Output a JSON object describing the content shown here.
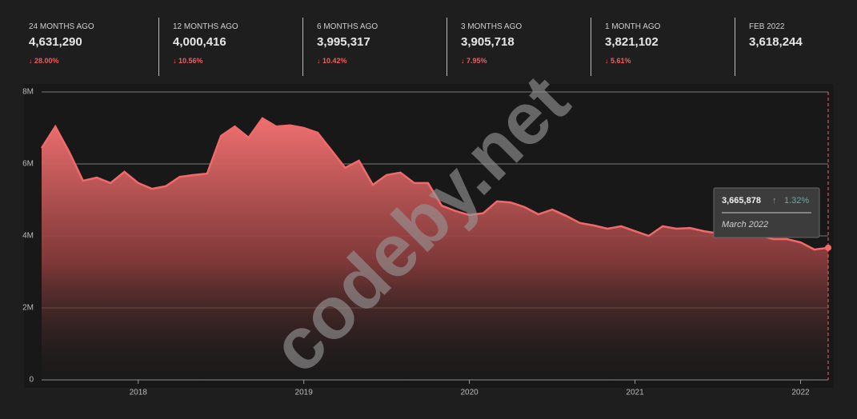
{
  "stats": [
    {
      "label": "24 MONTHS AGO",
      "value": "4,631,290",
      "change": "28.00%"
    },
    {
      "label": "12 MONTHS AGO",
      "value": "4,000,416",
      "change": "10.56%"
    },
    {
      "label": "6 MONTHS AGO",
      "value": "3,995,317",
      "change": "10.42%"
    },
    {
      "label": "3 MONTHS AGO",
      "value": "3,905,718",
      "change": "7.95%"
    },
    {
      "label": "1 MONTH AGO",
      "value": "3,821,102",
      "change": "5.61%"
    },
    {
      "label": "FEB 2022",
      "value": "3,618,244"
    }
  ],
  "watermark": "codeby.net",
  "chart_data": {
    "type": "area",
    "color": "#f06a6a",
    "x": [
      "2017-06",
      "2017-07",
      "2017-08",
      "2017-09",
      "2017-10",
      "2017-11",
      "2017-12",
      "2018-01",
      "2018-02",
      "2018-03",
      "2018-04",
      "2018-05",
      "2018-06",
      "2018-07",
      "2018-08",
      "2018-09",
      "2018-10",
      "2018-11",
      "2018-12",
      "2019-01",
      "2019-02",
      "2019-03",
      "2019-04",
      "2019-05",
      "2019-06",
      "2019-07",
      "2019-08",
      "2019-09",
      "2019-10",
      "2019-11",
      "2019-12",
      "2020-01",
      "2020-02",
      "2020-03",
      "2020-04",
      "2020-05",
      "2020-06",
      "2020-07",
      "2020-08",
      "2020-09",
      "2020-10",
      "2020-11",
      "2020-12",
      "2021-01",
      "2021-02",
      "2021-03",
      "2021-04",
      "2021-05",
      "2021-06",
      "2021-07",
      "2021-08",
      "2021-09",
      "2021-10",
      "2021-11",
      "2021-12",
      "2022-01",
      "2022-02",
      "2022-03"
    ],
    "values": [
      6.44,
      7.04,
      6.33,
      5.53,
      5.62,
      5.47,
      5.78,
      5.47,
      5.31,
      5.38,
      5.64,
      5.69,
      5.73,
      6.78,
      7.04,
      6.73,
      7.27,
      7.04,
      7.07,
      7.0,
      6.87,
      6.38,
      5.89,
      6.09,
      5.42,
      5.69,
      5.76,
      5.47,
      5.47,
      4.84,
      4.69,
      4.58,
      4.63,
      4.96,
      4.93,
      4.8,
      4.6,
      4.73,
      4.56,
      4.36,
      4.29,
      4.2,
      4.27,
      4.13,
      4.0,
      4.27,
      4.2,
      4.22,
      4.13,
      4.07,
      4.0,
      4.0,
      4.02,
      3.91,
      3.91,
      3.82,
      3.62,
      3.67
    ],
    "xlim": [
      "2017-06",
      "2022-03"
    ],
    "xticks": [
      2018,
      2019,
      2020,
      2021,
      2022
    ],
    "ylim": [
      0,
      8
    ],
    "yticks": [
      0,
      {
        "value": 2,
        "label": "2M"
      },
      {
        "value": 4,
        "label": "4M"
      },
      {
        "value": 6,
        "label": "6M"
      },
      {
        "value": 8,
        "label": "8M"
      }
    ],
    "grid": true,
    "tooltip": {
      "value": "3,665,878",
      "change": "1.32%",
      "date": "March 2022"
    }
  }
}
